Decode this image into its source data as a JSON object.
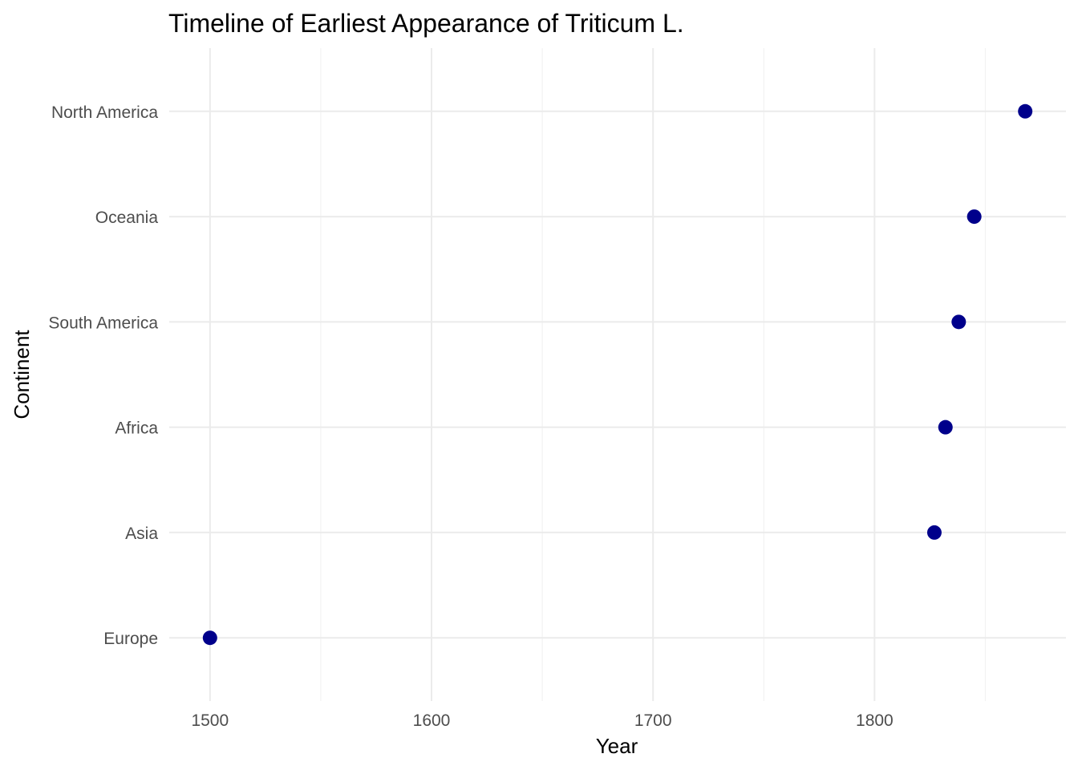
{
  "chart_data": {
    "type": "scatter",
    "title": "Timeline of Earliest Appearance of Triticum L.",
    "xlabel": "Year",
    "ylabel": "Continent",
    "categories": [
      "Europe",
      "Asia",
      "Africa",
      "South America",
      "Oceania",
      "North America"
    ],
    "points": [
      {
        "category": "Europe",
        "x": 1500
      },
      {
        "category": "Asia",
        "x": 1827
      },
      {
        "category": "Africa",
        "x": 1832
      },
      {
        "category": "South America",
        "x": 1838
      },
      {
        "category": "Oceania",
        "x": 1845
      },
      {
        "category": "North America",
        "x": 1868
      }
    ],
    "x_ticks": [
      1500,
      1600,
      1700,
      1800
    ],
    "x_minor_ticks": [
      1550,
      1650,
      1750,
      1850
    ],
    "xlim": [
      1481.6,
      1886.4
    ],
    "grid": true,
    "legend": "none",
    "point_color": "#00008b"
  }
}
